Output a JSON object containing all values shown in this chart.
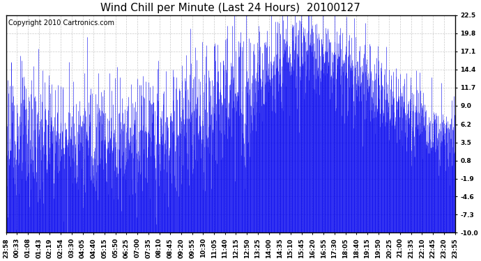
{
  "title": "Wind Chill per Minute (Last 24 Hours)  20100127",
  "copyright_text": "Copyright 2010 Cartronics.com",
  "line_color": "#0000EE",
  "background_color": "#FFFFFF",
  "plot_bg_color": "#FFFFFF",
  "grid_color": "#BBBBBB",
  "yticks": [
    22.5,
    19.8,
    17.1,
    14.4,
    11.7,
    9.0,
    6.2,
    3.5,
    0.8,
    -1.9,
    -4.6,
    -7.3,
    -10.0
  ],
  "ylim": [
    -10.0,
    22.5
  ],
  "xtick_labels": [
    "23:58",
    "00:33",
    "01:08",
    "01:43",
    "02:19",
    "02:54",
    "03:30",
    "04:05",
    "04:40",
    "05:15",
    "05:50",
    "06:25",
    "07:00",
    "07:35",
    "08:10",
    "08:45",
    "09:20",
    "09:55",
    "10:30",
    "11:05",
    "11:40",
    "12:15",
    "12:50",
    "13:25",
    "14:00",
    "14:35",
    "15:10",
    "15:45",
    "16:20",
    "16:55",
    "17:30",
    "18:05",
    "18:40",
    "19:15",
    "19:50",
    "20:25",
    "21:00",
    "21:35",
    "22:10",
    "22:45",
    "23:20",
    "23:55"
  ],
  "title_fontsize": 11,
  "tick_fontsize": 6.5,
  "copyright_fontsize": 7,
  "figsize": [
    6.9,
    3.75
  ],
  "dpi": 100
}
